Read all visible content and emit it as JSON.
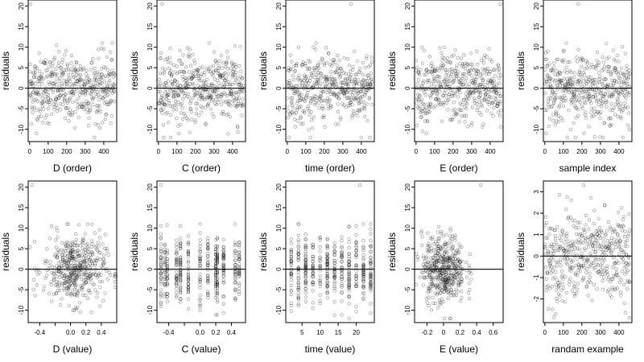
{
  "chart_data": [
    {
      "type": "scatter",
      "xlabel": "D (order)",
      "ylabel": "residuals",
      "xlim": [
        -8,
        470
      ],
      "ylim": [
        -13,
        21.5
      ],
      "xticks": [
        0,
        100,
        200,
        300,
        400
      ],
      "yticks": [
        -10,
        -5,
        0,
        5,
        10,
        15,
        20
      ],
      "hline": 0,
      "x_mode": "order",
      "n": 460,
      "y_range": [
        -12,
        11
      ],
      "outlier": {
        "x": 5,
        "y": 20.5
      }
    },
    {
      "type": "scatter",
      "xlabel": "C (order)",
      "ylabel": "residuals",
      "xlim": [
        -8,
        470
      ],
      "ylim": [
        -13,
        21.5
      ],
      "xticks": [
        0,
        100,
        200,
        300,
        400
      ],
      "yticks": [
        -10,
        -5,
        0,
        5,
        10,
        15,
        20
      ],
      "hline": 0,
      "x_mode": "order",
      "n": 460,
      "y_range": [
        -12,
        11
      ],
      "outlier": {
        "x": 20,
        "y": 20.5
      }
    },
    {
      "type": "scatter",
      "xlabel": "time (order)",
      "ylabel": "residuals",
      "xlim": [
        -8,
        470
      ],
      "ylim": [
        -13,
        21.5
      ],
      "xticks": [
        0,
        100,
        200,
        300,
        400
      ],
      "yticks": [
        -10,
        -5,
        0,
        5,
        10,
        15,
        20
      ],
      "hline": 0,
      "x_mode": "order",
      "n": 460,
      "y_range": [
        -12,
        11
      ],
      "outlier": {
        "x": 345,
        "y": 20.5
      }
    },
    {
      "type": "scatter",
      "xlabel": "E (order)",
      "ylabel": "residuals",
      "xlim": [
        -8,
        470
      ],
      "ylim": [
        -13,
        21.5
      ],
      "xticks": [
        0,
        100,
        200,
        300,
        400
      ],
      "yticks": [
        -10,
        -5,
        0,
        5,
        10,
        15,
        20
      ],
      "hline": 0,
      "x_mode": "order",
      "n": 460,
      "y_range": [
        -12,
        11
      ],
      "outlier": {
        "x": 455,
        "y": 20.5
      }
    },
    {
      "type": "scatter",
      "xlabel": "sample index",
      "ylabel": "residuals",
      "xlim": [
        -8,
        470
      ],
      "ylim": [
        -13,
        21.5
      ],
      "xticks": [
        0,
        100,
        200,
        300,
        400
      ],
      "yticks": [
        -10,
        -5,
        0,
        5,
        10,
        15,
        20
      ],
      "hline": 0,
      "x_mode": "order",
      "n": 460,
      "y_range": [
        -12,
        11
      ],
      "outlier": {
        "x": 180,
        "y": 20.5
      }
    },
    {
      "type": "scatter",
      "xlabel": "D (value)",
      "ylabel": "residuals",
      "xlim": [
        -0.55,
        0.6
      ],
      "ylim": [
        -13,
        21.5
      ],
      "xticks": [
        -0.4,
        -0.2,
        0.0,
        0.2,
        0.4
      ],
      "xtick_labels": [
        "-0.4",
        "",
        "0.0",
        "0.2",
        "0.4"
      ],
      "yticks": [
        -10,
        -5,
        0,
        5,
        10,
        15,
        20
      ],
      "hline": 0,
      "x_mode": "continuous",
      "x_center": 0.05,
      "x_spread": 0.2,
      "n": 460,
      "y_range": [
        -12,
        11
      ],
      "outlier": {
        "x": -0.5,
        "y": 20.5
      }
    },
    {
      "type": "scatter",
      "xlabel": "C (value)",
      "ylabel": "residuals",
      "xlim": [
        -0.55,
        0.58
      ],
      "ylim": [
        -13,
        21.5
      ],
      "xticks": [
        -0.4,
        -0.2,
        0.0,
        0.2,
        0.4
      ],
      "xtick_labels": [
        "-0.4",
        "",
        "0.0",
        "0.2",
        "0.4"
      ],
      "yticks": [
        -10,
        -5,
        0,
        5,
        10,
        15,
        20
      ],
      "hline": 0,
      "x_mode": "discrete",
      "x_levels": [
        -0.5,
        -0.45,
        -0.42,
        -0.3,
        -0.25,
        -0.15,
        0.0,
        0.1,
        0.2,
        0.22,
        0.3,
        0.45,
        0.5
      ],
      "n": 460,
      "y_range": [
        -12,
        11
      ],
      "outlier": {
        "x": -0.5,
        "y": 20.5
      }
    },
    {
      "type": "scatter",
      "xlabel": "time (value)",
      "ylabel": "residuals",
      "xlim": [
        0.5,
        25
      ],
      "ylim": [
        -13,
        21.5
      ],
      "xticks": [
        5,
        10,
        15,
        20
      ],
      "yticks": [
        -10,
        -5,
        0,
        5,
        10,
        15,
        20
      ],
      "hline": 0,
      "x_mode": "discrete",
      "x_levels": [
        2,
        4,
        6,
        8,
        10,
        12,
        14,
        16,
        18,
        20,
        22,
        24
      ],
      "n": 460,
      "y_range": [
        -12,
        11
      ],
      "outlier": {
        "x": 21,
        "y": 20.5
      }
    },
    {
      "type": "scatter",
      "xlabel": "E (value)",
      "ylabel": "residuals",
      "xlim": [
        -0.35,
        0.72
      ],
      "ylim": [
        -13,
        21.5
      ],
      "xticks": [
        -0.2,
        0.0,
        0.2,
        0.4,
        0.6
      ],
      "yticks": [
        -10,
        -5,
        0,
        5,
        10,
        15,
        20
      ],
      "hline": 0,
      "x_mode": "continuous",
      "x_center": 0.0,
      "x_spread": 0.13,
      "n": 460,
      "y_range": [
        -12,
        11
      ],
      "outlier": {
        "x": 0.45,
        "y": 20.5
      }
    },
    {
      "type": "scatter",
      "xlabel": "randam example",
      "ylabel": "residuals",
      "xlim": [
        -8,
        470
      ],
      "ylim": [
        -3.1,
        3.5
      ],
      "xticks": [
        0,
        100,
        200,
        300,
        400
      ],
      "yticks": [
        -2,
        -1,
        0,
        1,
        2,
        3
      ],
      "hline": 0,
      "x_mode": "order",
      "n": 460,
      "y_range": [
        -3,
        3.3
      ],
      "outlier": null,
      "distribution": "normal"
    }
  ]
}
